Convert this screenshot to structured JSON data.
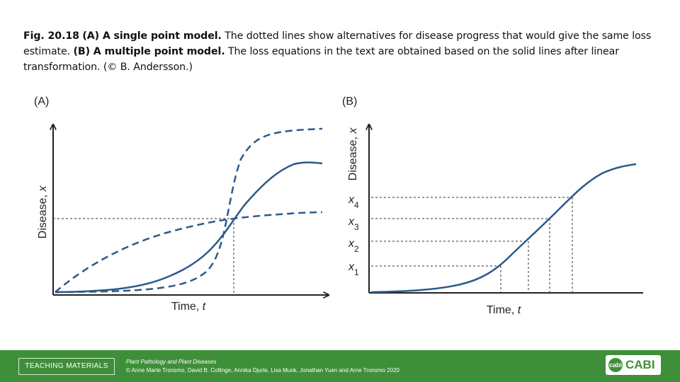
{
  "caption": {
    "label": "Fig. 20.18",
    "part_a_label": "(A) A single point model.",
    "part_a_text": "The dotted lines show alternatives for disease progress that would give the same loss estimate.",
    "part_b_label": "(B) A multiple point model.",
    "part_b_text": "The loss equations in the text are obtained based on the solid lines after linear transformation.",
    "credit": "(© B. Andersson.)"
  },
  "panel_a": {
    "label": "(A)",
    "ylabel": "Disease, x",
    "xlabel": "Time, t"
  },
  "panel_b": {
    "label": "(B)",
    "ylabel": "Disease, x",
    "xlabel": "Time, t",
    "ticks": [
      "x4",
      "x3",
      "x2",
      "x1"
    ]
  },
  "colors": {
    "curve": "#2b5a8a",
    "axis": "#222222",
    "footer": "#3f8f3a"
  },
  "footer": {
    "button_label": "TEACHING MATERIALS",
    "book_title": "Plant Pathology and Plant Diseases",
    "authors": "© Anne Marte Tronsmo, David B. Collinge, Annika Djurle, Lisa Munk, Jonathan Yuen and Arne Tronsmo 2020",
    "logo_mark": "cabi",
    "logo_text": "CABI"
  }
}
